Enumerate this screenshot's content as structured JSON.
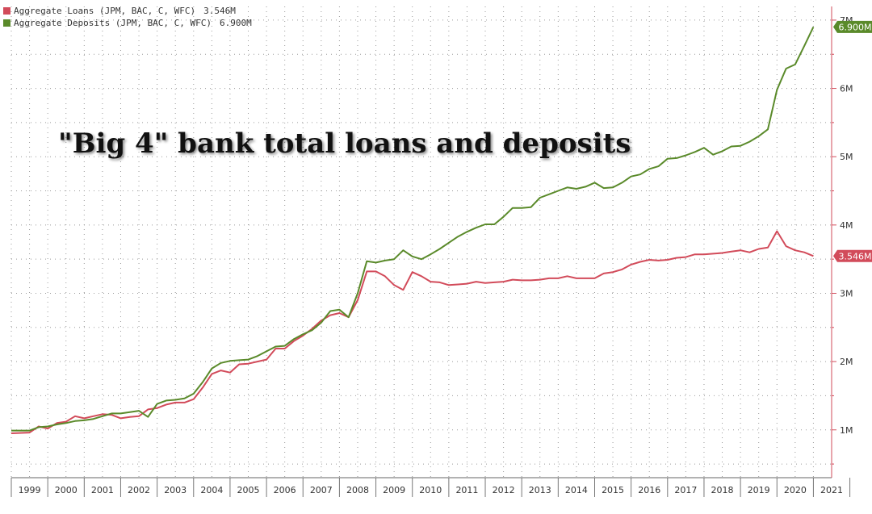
{
  "title": "\"Big 4\" bank total loans and deposits",
  "legend": [
    {
      "name": "Aggregate Loans (JPM, BAC, C, WFC)",
      "value": "3.546M",
      "color": "#d24b5a"
    },
    {
      "name": "Aggregate Deposits (JPM, BAC, C, WFC)",
      "value": "6.900M",
      "color": "#5a8a2a"
    }
  ],
  "chart_data": {
    "type": "line",
    "title": "\"Big 4\" bank total loans and deposits",
    "xlim": [
      1999.0,
      2021.5
    ],
    "ylim": [
      0.3,
      7.2
    ],
    "x_ticks": [
      "1999",
      "2000",
      "2001",
      "2002",
      "2003",
      "2004",
      "2005",
      "2006",
      "2007",
      "2008",
      "2009",
      "2010",
      "2011",
      "2012",
      "2013",
      "2014",
      "2015",
      "2016",
      "2017",
      "2018",
      "2019",
      "2020",
      "2021"
    ],
    "y_ticks": [
      {
        "value": 1,
        "label": "1M"
      },
      {
        "value": 2,
        "label": "2M"
      },
      {
        "value": 3,
        "label": "3M"
      },
      {
        "value": 4,
        "label": "4M"
      },
      {
        "value": 5,
        "label": "5M"
      },
      {
        "value": 6,
        "label": "6M"
      },
      {
        "value": 7,
        "label": "7M"
      }
    ],
    "grid": true,
    "legend_position": "top-left",
    "series": [
      {
        "name": "Aggregate Loans (JPM, BAC, C, WFC)",
        "color": "#d24b5a",
        "last_value_label": "3.546M",
        "points": [
          [
            1999.0,
            0.95
          ],
          [
            1999.5,
            0.96
          ],
          [
            1999.75,
            1.05
          ],
          [
            2000.0,
            1.02
          ],
          [
            2000.25,
            1.1
          ],
          [
            2000.5,
            1.12
          ],
          [
            2000.75,
            1.2
          ],
          [
            2001.0,
            1.17
          ],
          [
            2001.25,
            1.2
          ],
          [
            2001.5,
            1.23
          ],
          [
            2001.75,
            1.22
          ],
          [
            2002.0,
            1.17
          ],
          [
            2002.25,
            1.19
          ],
          [
            2002.5,
            1.2
          ],
          [
            2002.75,
            1.3
          ],
          [
            2003.0,
            1.32
          ],
          [
            2003.25,
            1.37
          ],
          [
            2003.5,
            1.4
          ],
          [
            2003.75,
            1.4
          ],
          [
            2004.0,
            1.45
          ],
          [
            2004.25,
            1.62
          ],
          [
            2004.5,
            1.82
          ],
          [
            2004.75,
            1.87
          ],
          [
            2005.0,
            1.84
          ],
          [
            2005.25,
            1.96
          ],
          [
            2005.5,
            1.97
          ],
          [
            2005.75,
            2.0
          ],
          [
            2006.0,
            2.03
          ],
          [
            2006.25,
            2.19
          ],
          [
            2006.5,
            2.19
          ],
          [
            2006.75,
            2.3
          ],
          [
            2007.0,
            2.38
          ],
          [
            2007.25,
            2.48
          ],
          [
            2007.5,
            2.6
          ],
          [
            2007.75,
            2.68
          ],
          [
            2008.0,
            2.71
          ],
          [
            2008.25,
            2.65
          ],
          [
            2008.5,
            2.9
          ],
          [
            2008.75,
            3.32
          ],
          [
            2009.0,
            3.32
          ],
          [
            2009.25,
            3.25
          ],
          [
            2009.5,
            3.12
          ],
          [
            2009.75,
            3.05
          ],
          [
            2010.0,
            3.31
          ],
          [
            2010.25,
            3.25
          ],
          [
            2010.5,
            3.17
          ],
          [
            2010.75,
            3.16
          ],
          [
            2011.0,
            3.12
          ],
          [
            2011.25,
            3.13
          ],
          [
            2011.5,
            3.14
          ],
          [
            2011.75,
            3.17
          ],
          [
            2012.0,
            3.15
          ],
          [
            2012.25,
            3.16
          ],
          [
            2012.5,
            3.17
          ],
          [
            2012.75,
            3.2
          ],
          [
            2013.0,
            3.19
          ],
          [
            2013.25,
            3.19
          ],
          [
            2013.5,
            3.2
          ],
          [
            2013.75,
            3.22
          ],
          [
            2014.0,
            3.22
          ],
          [
            2014.25,
            3.25
          ],
          [
            2014.5,
            3.22
          ],
          [
            2014.75,
            3.22
          ],
          [
            2015.0,
            3.22
          ],
          [
            2015.25,
            3.29
          ],
          [
            2015.5,
            3.31
          ],
          [
            2015.75,
            3.35
          ],
          [
            2016.0,
            3.42
          ],
          [
            2016.25,
            3.46
          ],
          [
            2016.5,
            3.49
          ],
          [
            2016.75,
            3.48
          ],
          [
            2017.0,
            3.49
          ],
          [
            2017.25,
            3.52
          ],
          [
            2017.5,
            3.53
          ],
          [
            2017.75,
            3.57
          ],
          [
            2018.0,
            3.57
          ],
          [
            2018.25,
            3.58
          ],
          [
            2018.5,
            3.59
          ],
          [
            2018.75,
            3.61
          ],
          [
            2019.0,
            3.63
          ],
          [
            2019.25,
            3.6
          ],
          [
            2019.5,
            3.65
          ],
          [
            2019.75,
            3.67
          ],
          [
            2020.0,
            3.91
          ],
          [
            2020.25,
            3.69
          ],
          [
            2020.5,
            3.63
          ],
          [
            2020.75,
            3.6
          ],
          [
            2021.0,
            3.546
          ]
        ]
      },
      {
        "name": "Aggregate Deposits (JPM, BAC, C, WFC)",
        "color": "#5a8a2a",
        "last_value_label": "6.900M",
        "points": [
          [
            1999.0,
            0.99
          ],
          [
            1999.5,
            0.99
          ],
          [
            1999.75,
            1.04
          ],
          [
            2000.0,
            1.05
          ],
          [
            2000.25,
            1.08
          ],
          [
            2000.5,
            1.1
          ],
          [
            2000.75,
            1.13
          ],
          [
            2001.0,
            1.14
          ],
          [
            2001.25,
            1.16
          ],
          [
            2001.5,
            1.2
          ],
          [
            2001.75,
            1.24
          ],
          [
            2002.0,
            1.24
          ],
          [
            2002.25,
            1.26
          ],
          [
            2002.5,
            1.28
          ],
          [
            2002.75,
            1.19
          ],
          [
            2003.0,
            1.38
          ],
          [
            2003.25,
            1.43
          ],
          [
            2003.5,
            1.44
          ],
          [
            2003.75,
            1.46
          ],
          [
            2004.0,
            1.53
          ],
          [
            2004.25,
            1.7
          ],
          [
            2004.5,
            1.9
          ],
          [
            2004.75,
            1.98
          ],
          [
            2005.0,
            2.01
          ],
          [
            2005.25,
            2.02
          ],
          [
            2005.5,
            2.03
          ],
          [
            2005.75,
            2.08
          ],
          [
            2006.0,
            2.15
          ],
          [
            2006.25,
            2.22
          ],
          [
            2006.5,
            2.23
          ],
          [
            2006.75,
            2.33
          ],
          [
            2007.0,
            2.4
          ],
          [
            2007.25,
            2.46
          ],
          [
            2007.5,
            2.57
          ],
          [
            2007.75,
            2.74
          ],
          [
            2008.0,
            2.76
          ],
          [
            2008.25,
            2.65
          ],
          [
            2008.5,
            3.0
          ],
          [
            2008.75,
            3.47
          ],
          [
            2009.0,
            3.45
          ],
          [
            2009.25,
            3.48
          ],
          [
            2009.5,
            3.5
          ],
          [
            2009.75,
            3.63
          ],
          [
            2010.0,
            3.54
          ],
          [
            2010.25,
            3.5
          ],
          [
            2010.5,
            3.57
          ],
          [
            2010.75,
            3.65
          ],
          [
            2011.0,
            3.74
          ],
          [
            2011.25,
            3.83
          ],
          [
            2011.5,
            3.9
          ],
          [
            2011.75,
            3.96
          ],
          [
            2012.0,
            4.01
          ],
          [
            2012.25,
            4.01
          ],
          [
            2012.5,
            4.12
          ],
          [
            2012.75,
            4.25
          ],
          [
            2013.0,
            4.25
          ],
          [
            2013.25,
            4.26
          ],
          [
            2013.5,
            4.4
          ],
          [
            2013.75,
            4.45
          ],
          [
            2014.0,
            4.5
          ],
          [
            2014.25,
            4.55
          ],
          [
            2014.5,
            4.53
          ],
          [
            2014.75,
            4.56
          ],
          [
            2015.0,
            4.62
          ],
          [
            2015.25,
            4.54
          ],
          [
            2015.5,
            4.55
          ],
          [
            2015.75,
            4.62
          ],
          [
            2016.0,
            4.71
          ],
          [
            2016.25,
            4.74
          ],
          [
            2016.5,
            4.82
          ],
          [
            2016.75,
            4.86
          ],
          [
            2017.0,
            4.97
          ],
          [
            2017.25,
            4.98
          ],
          [
            2017.5,
            5.02
          ],
          [
            2017.75,
            5.07
          ],
          [
            2018.0,
            5.13
          ],
          [
            2018.25,
            5.03
          ],
          [
            2018.5,
            5.08
          ],
          [
            2018.75,
            5.15
          ],
          [
            2019.0,
            5.16
          ],
          [
            2019.25,
            5.22
          ],
          [
            2019.5,
            5.3
          ],
          [
            2019.75,
            5.4
          ],
          [
            2020.0,
            5.98
          ],
          [
            2020.25,
            6.29
          ],
          [
            2020.5,
            6.35
          ],
          [
            2020.75,
            6.62
          ],
          [
            2021.0,
            6.9
          ]
        ]
      }
    ]
  }
}
